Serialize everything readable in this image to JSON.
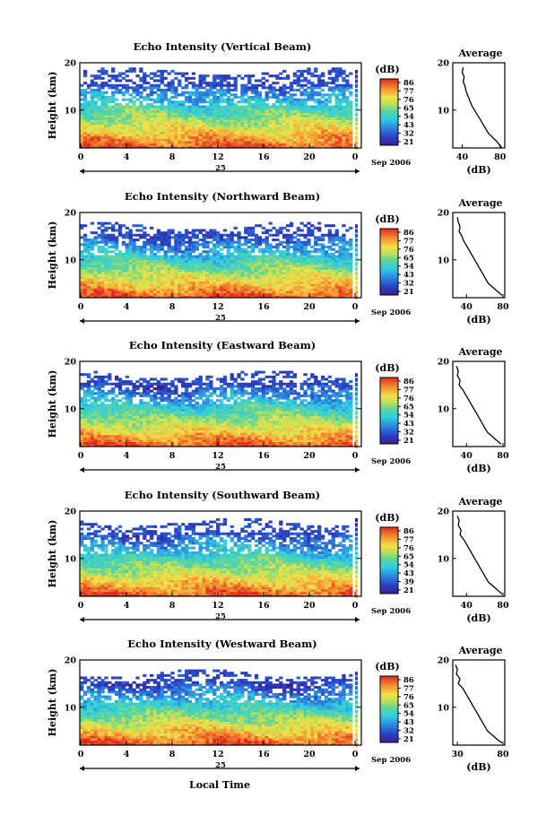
{
  "figure": {
    "shared_xlabel": "Local Time"
  },
  "chart_data": [
    {
      "type": "heatmap",
      "title": "Echo Intensity (Vertical Beam)",
      "ylabel": "Height (km)",
      "ylim": [
        2,
        20
      ],
      "yticks": [
        "20",
        "10"
      ],
      "xlim": [
        0,
        24
      ],
      "xticks": [
        "0",
        "4",
        "8",
        "12",
        "16",
        "20",
        "0"
      ],
      "day_label": "25",
      "month_label": "Sep 2006",
      "colorbar": {
        "unit": "(dB)",
        "ticks": [
          "86",
          "77",
          "76",
          "65",
          "54",
          "43",
          "32",
          "21"
        ]
      },
      "coverage_top_km": 19,
      "profile": {
        "title": "Average",
        "xlabel": "(dB)",
        "xticks": [
          "40",
          "80"
        ],
        "yticks": [
          "20",
          "10"
        ],
        "xlim": [
          30,
          85
        ],
        "x": [
          41,
          40,
          42,
          41,
          43,
          44,
          46,
          48,
          50,
          53,
          56,
          59,
          62,
          65,
          68,
          71,
          73,
          76,
          78,
          80,
          82
        ],
        "y": [
          19,
          18,
          17,
          16,
          15,
          14,
          13,
          12,
          11,
          10,
          9,
          8,
          7,
          6,
          5,
          4.5,
          4,
          3.5,
          3,
          2.5,
          2
        ]
      }
    },
    {
      "type": "heatmap",
      "title": "Echo Intensity (Northward Beam)",
      "ylabel": "Height (km)",
      "ylim": [
        2,
        20
      ],
      "yticks": [
        "20",
        "10"
      ],
      "xlim": [
        0,
        24
      ],
      "xticks": [
        "0",
        "4",
        "8",
        "12",
        "16",
        "20",
        "0"
      ],
      "day_label": "25",
      "month_label": "Sep 2006",
      "colorbar": {
        "unit": "(dB)",
        "ticks": [
          "86",
          "77",
          "76",
          "65",
          "54",
          "43",
          "32",
          "21"
        ]
      },
      "coverage_top_km": 18,
      "profile": {
        "title": "Average",
        "xlabel": "(dB)",
        "xticks": [
          "40",
          "80"
        ],
        "yticks": [
          "20",
          "10"
        ],
        "xlim": [
          25,
          82
        ],
        "x": [
          30,
          31,
          33,
          32,
          35,
          37,
          40,
          43,
          46,
          49,
          52,
          55,
          58,
          61,
          64,
          67,
          70,
          73,
          76,
          79
        ],
        "y": [
          19,
          18,
          17,
          16,
          15,
          14,
          13,
          12,
          11,
          10,
          9,
          8,
          7,
          6,
          5,
          4.5,
          4,
          3.5,
          3,
          2.5
        ]
      }
    },
    {
      "type": "heatmap",
      "title": "Echo Intensity (Eastward Beam)",
      "ylabel": "Height (km)",
      "ylim": [
        2,
        20
      ],
      "yticks": [
        "20",
        "10"
      ],
      "xlim": [
        0,
        24
      ],
      "xticks": [
        "0",
        "4",
        "8",
        "12",
        "16",
        "20",
        "0"
      ],
      "day_label": "25",
      "month_label": "Sep 2006",
      "colorbar": {
        "unit": "(dB)",
        "ticks": [
          "86",
          "77",
          "76",
          "65",
          "54",
          "43",
          "32",
          "21"
        ]
      },
      "coverage_top_km": 18,
      "profile": {
        "title": "Average",
        "xlabel": "(dB)",
        "xticks": [
          "40",
          "80"
        ],
        "yticks": [
          "20",
          "10"
        ],
        "xlim": [
          25,
          82
        ],
        "x": [
          29,
          31,
          30,
          33,
          32,
          36,
          39,
          42,
          45,
          48,
          51,
          54,
          57,
          60,
          63,
          66,
          69,
          72,
          75,
          78
        ],
        "y": [
          19,
          18,
          17,
          16,
          15,
          14,
          13,
          12,
          11,
          10,
          9,
          8,
          7,
          6,
          5,
          4.5,
          4,
          3.5,
          3,
          2.5
        ]
      }
    },
    {
      "type": "heatmap",
      "title": "Echo Intensity (Southward Beam)",
      "ylabel": "Height (km)",
      "ylim": [
        2,
        20
      ],
      "yticks": [
        "20",
        "10"
      ],
      "xlim": [
        0,
        24
      ],
      "xticks": [
        "0",
        "4",
        "8",
        "12",
        "16",
        "20",
        "0"
      ],
      "day_label": "25",
      "month_label": "Sep 2006",
      "colorbar": {
        "unit": "(dB)",
        "ticks": [
          "86",
          "77",
          "76",
          "65",
          "54",
          "43",
          "39",
          "21"
        ]
      },
      "coverage_top_km": 18.5,
      "profile": {
        "title": "Average",
        "xlabel": "(dB)",
        "xticks": [
          "40",
          "80"
        ],
        "yticks": [
          "20",
          "10"
        ],
        "xlim": [
          25,
          82
        ],
        "x": [
          30,
          32,
          31,
          34,
          33,
          37,
          40,
          43,
          46,
          49,
          52,
          55,
          58,
          61,
          64,
          67,
          70,
          73,
          76,
          79
        ],
        "y": [
          19,
          18,
          17,
          16,
          15,
          14,
          13,
          12,
          11,
          10,
          9,
          8,
          7,
          6,
          5,
          4.5,
          4,
          3.5,
          3,
          2.5
        ]
      }
    },
    {
      "type": "heatmap",
      "title": "Echo Intensity (Westward Beam)",
      "ylabel": "Height (km)",
      "ylim": [
        2,
        20
      ],
      "yticks": [
        "20",
        "10"
      ],
      "xlim": [
        0,
        24
      ],
      "xticks": [
        "0",
        "4",
        "8",
        "12",
        "16",
        "20",
        "0"
      ],
      "day_label": "25",
      "month_label": "Sep 2006",
      "colorbar": {
        "unit": "(dB)",
        "ticks": [
          "86",
          "77",
          "76",
          "65",
          "54",
          "43",
          "32",
          "21"
        ]
      },
      "coverage_top_km": 18,
      "profile": {
        "title": "Average",
        "xlabel": "(dB)",
        "xticks": [
          "30",
          "80"
        ],
        "yticks": [
          "20",
          "10"
        ],
        "xlim": [
          25,
          82
        ],
        "x": [
          28,
          30,
          29,
          33,
          31,
          36,
          39,
          42,
          45,
          48,
          51,
          54,
          57,
          60,
          63,
          66,
          69,
          72,
          75,
          79
        ],
        "y": [
          19,
          18,
          17,
          16,
          15,
          14,
          13,
          12,
          11,
          10,
          9,
          8,
          7,
          6,
          5,
          4.5,
          4,
          3.5,
          3,
          2.5
        ]
      }
    }
  ]
}
